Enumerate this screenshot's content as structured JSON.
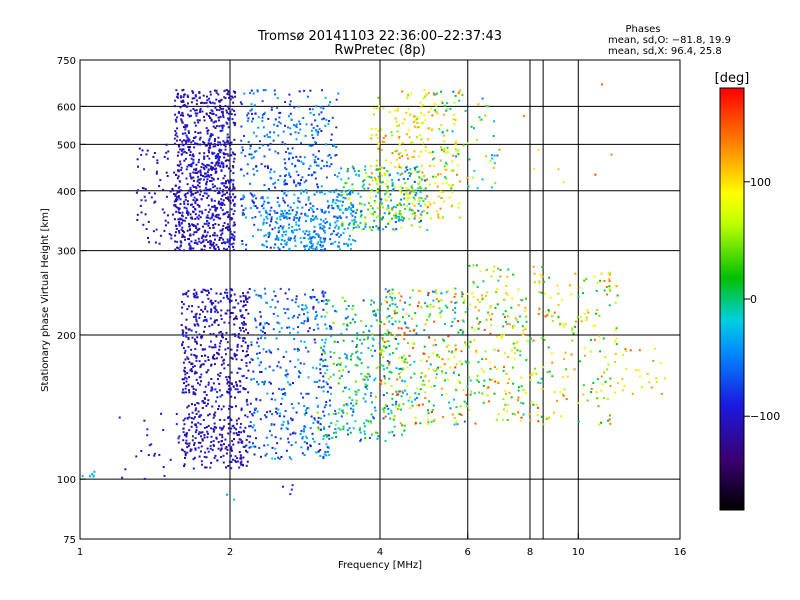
{
  "chart_data": {
    "type": "scatter",
    "title": "Tromsø 20141103 22:36:00–22:37:43",
    "subtitle": "RwPretec (8p)",
    "xlabel": "Frequency [MHz]",
    "ylabel": "Stationary phase Virtual Height [km]",
    "x_scale": "log",
    "y_scale": "log",
    "xlim": [
      1,
      16
    ],
    "ylim": [
      75,
      750
    ],
    "x_ticks": [
      1,
      2,
      4,
      6,
      8,
      10,
      16
    ],
    "x_tick_labels": [
      "1",
      "2",
      "4",
      "6",
      "8",
      "10",
      "16"
    ],
    "y_ticks": [
      75,
      100,
      200,
      300,
      400,
      500,
      600,
      750
    ],
    "y_tick_labels": [
      "75",
      "100",
      "200",
      "300",
      "400",
      "500",
      "600",
      "750"
    ],
    "grid": true,
    "stats": {
      "heading": "Phases",
      "line_o": "mean, sd,O: −81.8, 19.9",
      "line_x": "mean, sd,X:  96.4, 25.8"
    },
    "colorbar": {
      "label": "[deg]",
      "range": [
        -180,
        180
      ],
      "ticks": [
        -100,
        0,
        100
      ],
      "tick_labels": [
        "−100",
        "0",
        "100"
      ]
    },
    "clusters": [
      {
        "f": [
          1.55,
          2.05
        ],
        "h": [
          300,
          650
        ],
        "phase": [
          -130,
          -80
        ],
        "count": 900
      },
      {
        "f": [
          1.3,
          1.6
        ],
        "h": [
          310,
          500
        ],
        "phase": [
          -120,
          -90
        ],
        "count": 80
      },
      {
        "f": [
          2.1,
          3.3
        ],
        "h": [
          300,
          650
        ],
        "phase": [
          -100,
          -30
        ],
        "count": 450
      },
      {
        "f": [
          2.3,
          3.6
        ],
        "h": [
          300,
          400
        ],
        "phase": [
          -60,
          -20
        ],
        "count": 220
      },
      {
        "f": [
          3.3,
          5.0
        ],
        "h": [
          330,
          450
        ],
        "phase": [
          -80,
          80
        ],
        "count": 260
      },
      {
        "f": [
          3.8,
          5.8
        ],
        "h": [
          350,
          650
        ],
        "phase": [
          40,
          140
        ],
        "count": 260
      },
      {
        "f": [
          5.0,
          7.0
        ],
        "h": [
          400,
          650
        ],
        "phase": [
          -60,
          130
        ],
        "count": 70
      },
      {
        "f": [
          7.5,
          12
        ],
        "h": [
          400,
          680
        ],
        "phase": [
          60,
          160
        ],
        "count": 8
      },
      {
        "f": [
          1.6,
          2.2
        ],
        "h": [
          105,
          250
        ],
        "phase": [
          -130,
          -80
        ],
        "count": 700
      },
      {
        "f": [
          2.2,
          3.2
        ],
        "h": [
          110,
          250
        ],
        "phase": [
          -110,
          -20
        ],
        "count": 380
      },
      {
        "f": [
          3.0,
          4.5
        ],
        "h": [
          120,
          240
        ],
        "phase": [
          -80,
          60
        ],
        "count": 320
      },
      {
        "f": [
          4.0,
          6.0
        ],
        "h": [
          130,
          250
        ],
        "phase": [
          -60,
          170
        ],
        "count": 320
      },
      {
        "f": [
          6.0,
          8.5
        ],
        "h": [
          130,
          280
        ],
        "phase": [
          -20,
          160
        ],
        "count": 230
      },
      {
        "f": [
          8.5,
          12
        ],
        "h": [
          130,
          270
        ],
        "phase": [
          0,
          150
        ],
        "count": 150
      },
      {
        "f": [
          12,
          15
        ],
        "h": [
          150,
          190
        ],
        "phase": [
          60,
          150
        ],
        "count": 25
      },
      {
        "f": [
          1.2,
          1.6
        ],
        "h": [
          100,
          140
        ],
        "phase": [
          -110,
          -80
        ],
        "count": 25
      },
      {
        "f": [
          1.0,
          1.1
        ],
        "h": [
          101,
          104
        ],
        "phase": [
          -40,
          -20
        ],
        "count": 6
      },
      {
        "f": [
          2.5,
          2.7
        ],
        "h": [
          93,
          98
        ],
        "phase": [
          -100,
          -80
        ],
        "count": 4
      },
      {
        "f": [
          1.95,
          2.05
        ],
        "h": [
          90,
          95
        ],
        "phase": [
          -40,
          -20
        ],
        "count": 2
      }
    ]
  }
}
